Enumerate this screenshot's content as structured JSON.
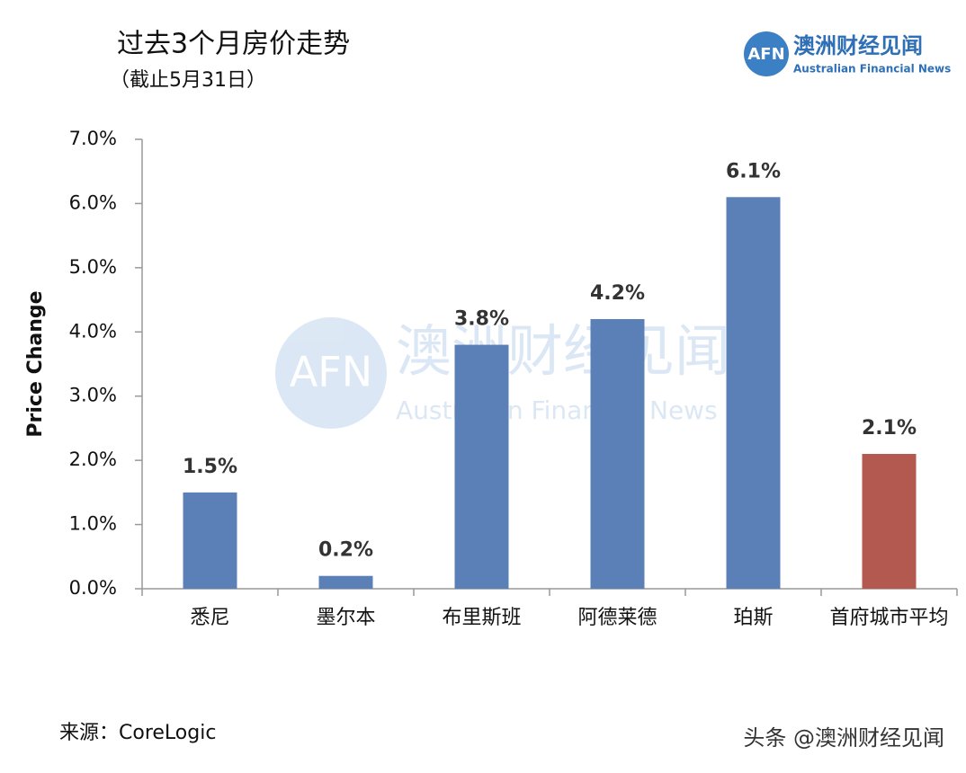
{
  "chart_data": {
    "type": "bar",
    "title": "过去3个月房价走势",
    "subtitle": "（截止5月31日）",
    "y_label": "Price Change",
    "categories": [
      "悉尼",
      "墨尔本",
      "布里斯班",
      "阿德莱德",
      "珀斯",
      "首府城市平均"
    ],
    "values": [
      1.5,
      0.2,
      3.8,
      4.2,
      6.1,
      2.1
    ],
    "value_labels": [
      "1.5%",
      "0.2%",
      "3.8%",
      "4.2%",
      "6.1%",
      "2.1%"
    ],
    "colors": [
      "#5b80b8",
      "#5b80b8",
      "#5b80b8",
      "#5b80b8",
      "#5b80b8",
      "#b3594f"
    ],
    "ylim": [
      0,
      7
    ],
    "yticks": [
      {
        "value": 0,
        "label": "0.0%"
      },
      {
        "value": 1,
        "label": "1.0%"
      },
      {
        "value": 2,
        "label": "2.0%"
      },
      {
        "value": 3,
        "label": "3.0%"
      },
      {
        "value": 4,
        "label": "4.0%"
      },
      {
        "value": 5,
        "label": "5.0%"
      },
      {
        "value": 6,
        "label": "6.0%"
      },
      {
        "value": 7,
        "label": "7.0%"
      }
    ],
    "grid": false
  },
  "logo": {
    "mark": "AFN",
    "name": "澳洲财经见闻",
    "name_en": "Australian Financial News"
  },
  "source": "来源：CoreLogic",
  "watermark": "头条 @澳洲财经见闻"
}
